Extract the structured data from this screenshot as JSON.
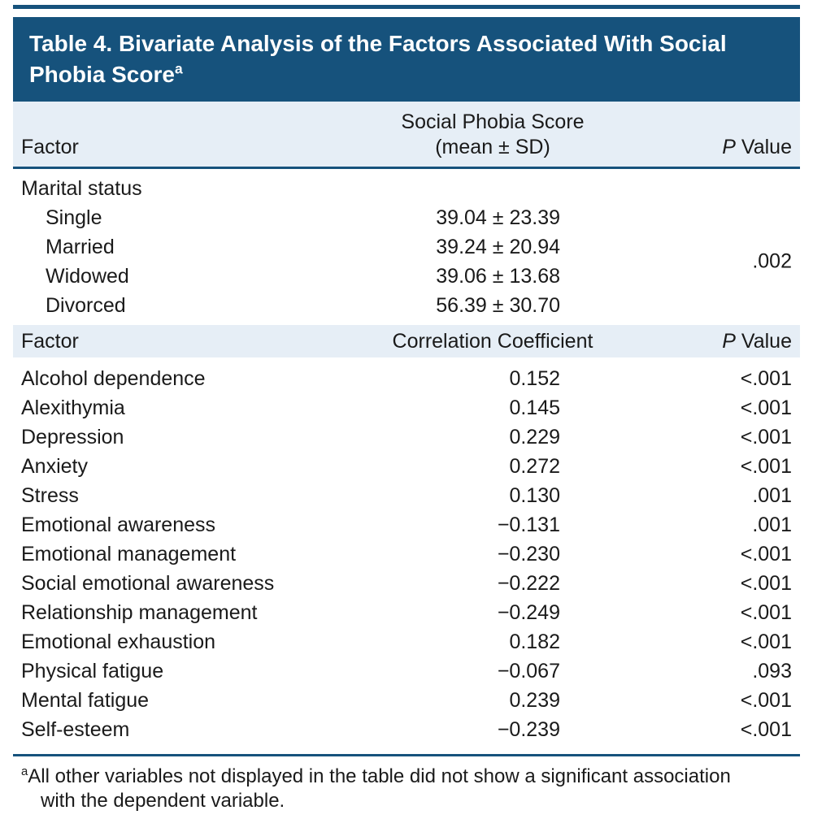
{
  "colors": {
    "header_bg": "#16527C",
    "band_bg": "#E6EEF6",
    "rule": "#16527C",
    "text": "#1A1A1A"
  },
  "title": {
    "text": "Table 4. Bivariate Analysis of the Factors Associated With Social Phobia Score",
    "sup": "a"
  },
  "section1": {
    "header": {
      "factor": "Factor",
      "score_line1": "Social Phobia Score",
      "score_line2": "(mean ± SD)",
      "p_italic": "P",
      "p_rest": "Value"
    },
    "group_label": "Marital status",
    "rows": [
      {
        "label": "Single",
        "value": "39.04 ± 23.39"
      },
      {
        "label": "Married",
        "value": "39.24 ± 20.94"
      },
      {
        "label": "Widowed",
        "value": "39.06 ± 13.68"
      },
      {
        "label": "Divorced",
        "value": "56.39 ± 30.70"
      }
    ],
    "p_value": ".002"
  },
  "section2": {
    "header": {
      "factor": "Factor",
      "value": "Correlation Coefficient",
      "p_italic": "P",
      "p_rest": "Value"
    },
    "rows": [
      {
        "label": "Alcohol dependence",
        "value": "0.152",
        "p": "<.001"
      },
      {
        "label": "Alexithymia",
        "value": "0.145",
        "p": "<.001"
      },
      {
        "label": "Depression",
        "value": "0.229",
        "p": "<.001"
      },
      {
        "label": "Anxiety",
        "value": "0.272",
        "p": "<.001"
      },
      {
        "label": "Stress",
        "value": "0.130",
        "p": ".001"
      },
      {
        "label": "Emotional awareness",
        "value": "−0.131",
        "p": ".001"
      },
      {
        "label": "Emotional management",
        "value": "−0.230",
        "p": "<.001"
      },
      {
        "label": "Social emotional awareness",
        "value": "−0.222",
        "p": "<.001"
      },
      {
        "label": "Relationship management",
        "value": "−0.249",
        "p": "<.001"
      },
      {
        "label": "Emotional exhaustion",
        "value": "0.182",
        "p": "<.001"
      },
      {
        "label": "Physical fatigue",
        "value": "−0.067",
        "p": ".093"
      },
      {
        "label": "Mental fatigue",
        "value": "0.239",
        "p": "<.001"
      },
      {
        "label": "Self-esteem",
        "value": "−0.239",
        "p": "<.001"
      }
    ]
  },
  "footnote": {
    "sup": "a",
    "text": "All other variables not displayed in the table did not show a significant association with the dependent variable."
  }
}
